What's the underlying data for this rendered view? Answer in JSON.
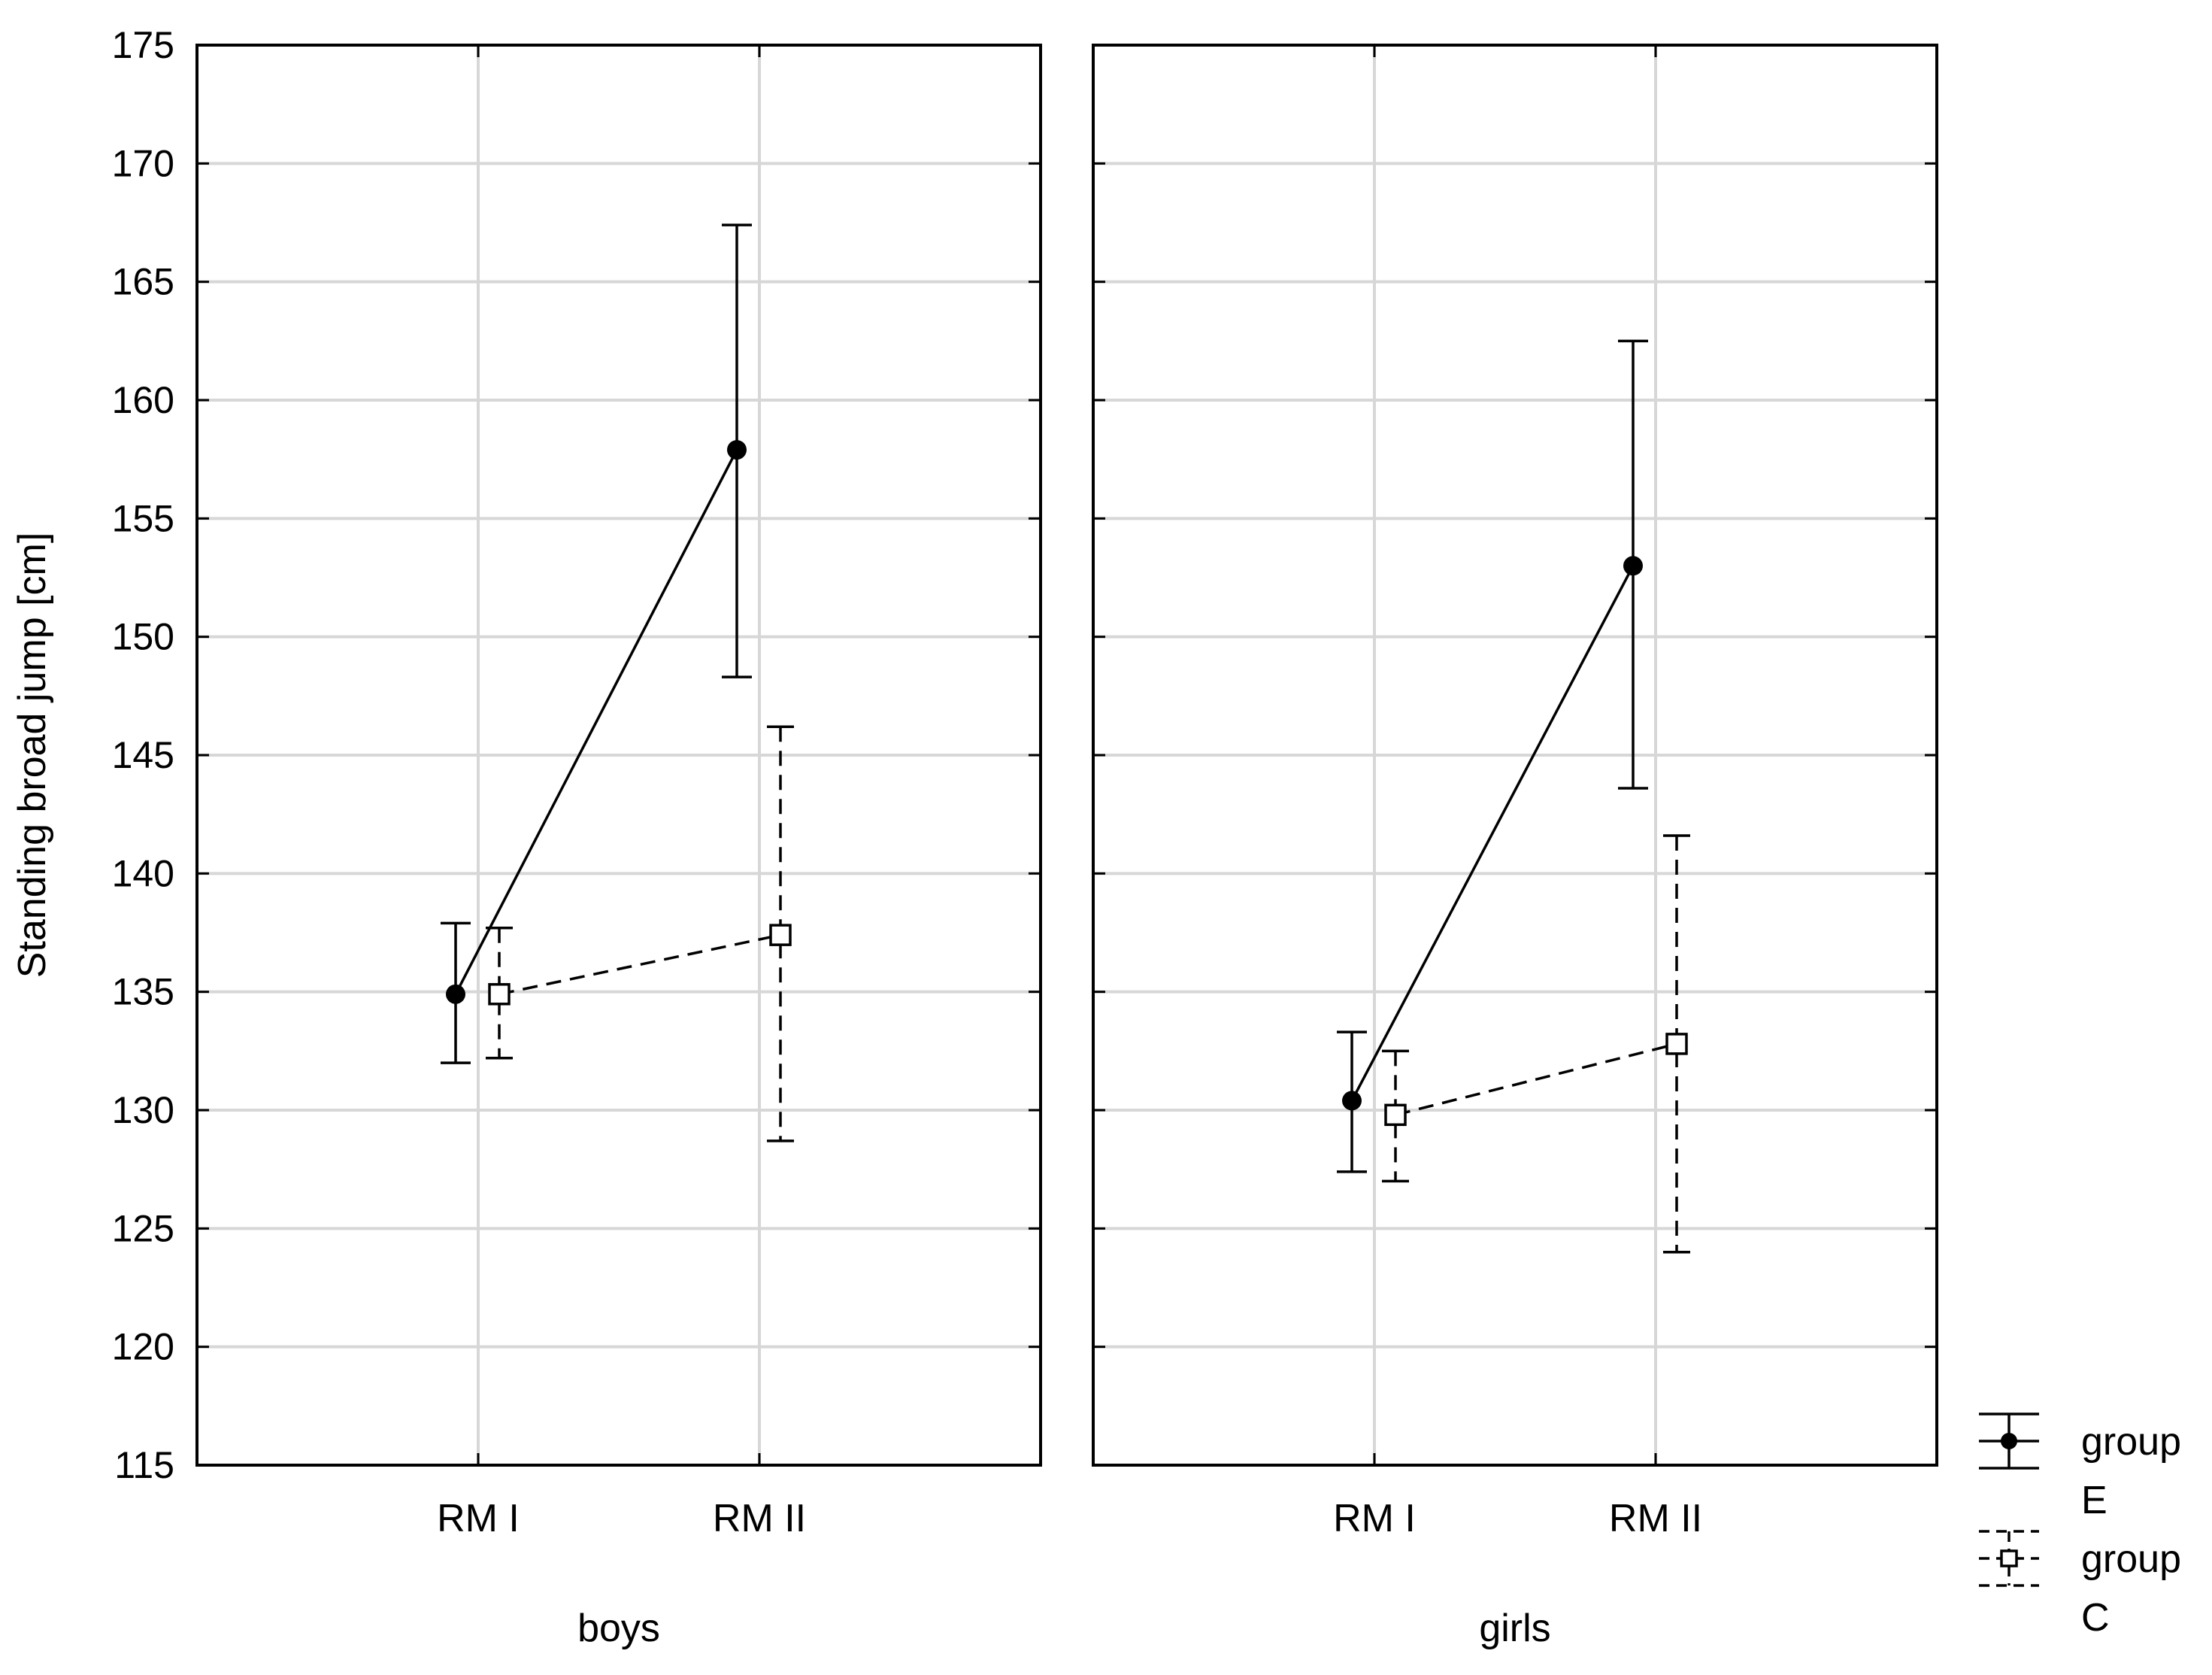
{
  "chart_data": {
    "type": "line",
    "ylabel": "Standing broad jump [cm]",
    "ylim": [
      115,
      175
    ],
    "yticks": [
      115,
      120,
      125,
      130,
      135,
      140,
      145,
      150,
      155,
      160,
      165,
      170,
      175
    ],
    "categories": [
      "RM I",
      "RM II"
    ],
    "grid": true,
    "legend_position": "bottom-right",
    "panels": [
      {
        "label": "boys",
        "series": [
          {
            "name": "group E",
            "values": [
              134.9,
              157.9
            ],
            "error_low": [
              132.0,
              148.3
            ],
            "error_high": [
              137.9,
              167.4
            ]
          },
          {
            "name": "group C",
            "values": [
              134.9,
              137.4
            ],
            "error_low": [
              132.2,
              128.7
            ],
            "error_high": [
              137.7,
              146.2
            ]
          }
        ]
      },
      {
        "label": "girls",
        "series": [
          {
            "name": "group E",
            "values": [
              130.4,
              153.0
            ],
            "error_low": [
              127.4,
              143.6
            ],
            "error_high": [
              133.3,
              162.5
            ]
          },
          {
            "name": "group C",
            "values": [
              129.8,
              132.8
            ],
            "error_low": [
              127.0,
              124.0
            ],
            "error_high": [
              132.5,
              141.6
            ]
          }
        ]
      }
    ],
    "legend": [
      {
        "line1": "group",
        "line2": "E",
        "marker": "filled-circle",
        "line_style": "solid"
      },
      {
        "line1": "group",
        "line2": "C",
        "marker": "open-square",
        "line_style": "dashed"
      }
    ]
  }
}
